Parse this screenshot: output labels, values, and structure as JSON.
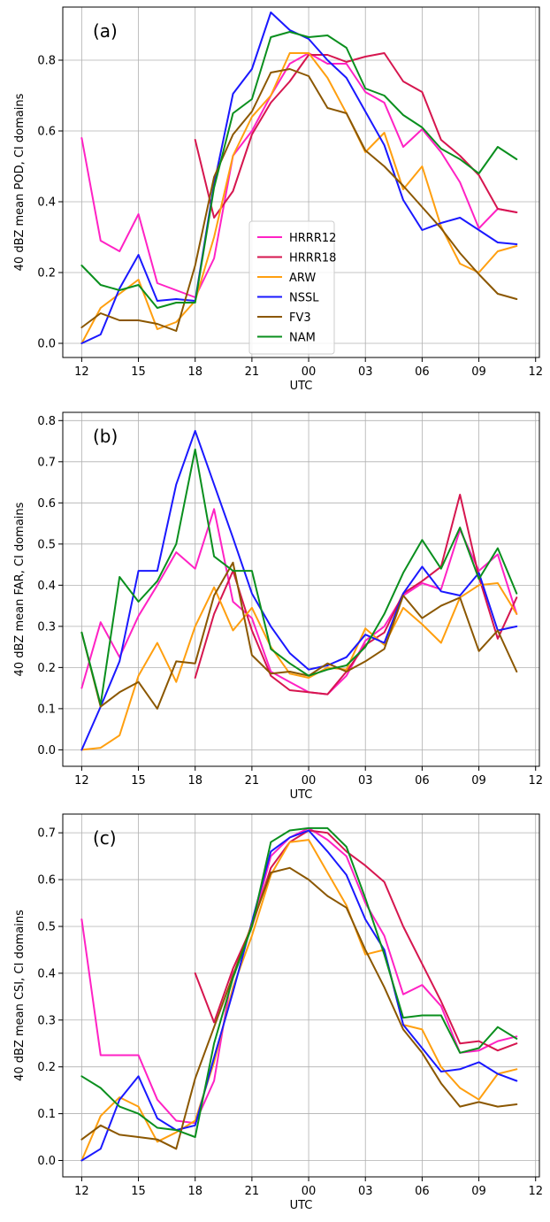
{
  "chart_data": [
    {
      "type": "line",
      "panel_label": "(a)",
      "xlabel": "UTC",
      "ylabel": "40 dBZ mean POD, CI domains",
      "xticks": [
        12,
        15,
        18,
        21,
        24,
        27,
        30,
        33,
        36
      ],
      "xticklabels": [
        "12",
        "15",
        "18",
        "21",
        "00",
        "03",
        "06",
        "09",
        "12"
      ],
      "yticks": [
        0.0,
        0.2,
        0.4,
        0.6,
        0.8
      ],
      "yticklabels": [
        "0.0",
        "0.2",
        "0.4",
        "0.6",
        "0.8"
      ],
      "xlim": [
        11,
        36.2
      ],
      "ylim": [
        -0.04,
        0.95
      ],
      "grid": true,
      "legend": "center, inside plot",
      "series": [
        {
          "name": "HRRR12",
          "color": "#ff22c4",
          "x": [
            12,
            13,
            14,
            15,
            16,
            17,
            18,
            19,
            20,
            21,
            22,
            23,
            24,
            25,
            26,
            27,
            28,
            29,
            30,
            31,
            32,
            33,
            34,
            35
          ],
          "values": [
            0.58,
            0.29,
            0.26,
            0.365,
            0.17,
            0.15,
            0.13,
            0.24,
            0.53,
            0.6,
            0.7,
            0.79,
            0.82,
            0.79,
            0.79,
            0.71,
            0.68,
            0.555,
            0.605,
            0.54,
            0.455,
            0.325,
            0.38,
            0.37
          ]
        },
        {
          "name": "HRRR18",
          "color": "#d6164f",
          "x": [
            18,
            19,
            20,
            21,
            22,
            23,
            24,
            25,
            26,
            27,
            28,
            29,
            30,
            31,
            32,
            33,
            34,
            35
          ],
          "values": [
            0.575,
            0.355,
            0.43,
            0.59,
            0.68,
            0.74,
            0.815,
            0.815,
            0.795,
            0.81,
            0.82,
            0.74,
            0.71,
            0.575,
            0.53,
            0.475,
            0.38,
            0.37
          ]
        },
        {
          "name": "ARW",
          "color": "#ff9f0f",
          "x": [
            12,
            13,
            14,
            15,
            16,
            17,
            18,
            19,
            20,
            21,
            22,
            23,
            24,
            25,
            26,
            27,
            28,
            29,
            30,
            31,
            32,
            33,
            34,
            35
          ],
          "values": [
            0.0,
            0.1,
            0.14,
            0.18,
            0.04,
            0.06,
            0.12,
            0.3,
            0.53,
            0.64,
            0.7,
            0.82,
            0.82,
            0.75,
            0.65,
            0.54,
            0.595,
            0.435,
            0.5,
            0.33,
            0.225,
            0.2,
            0.26,
            0.275
          ]
        },
        {
          "name": "NSSL",
          "color": "#1a18ff",
          "x": [
            12,
            13,
            14,
            15,
            16,
            17,
            18,
            19,
            20,
            21,
            22,
            23,
            24,
            25,
            26,
            27,
            28,
            29,
            30,
            31,
            32,
            33,
            34,
            35
          ],
          "values": [
            0.0,
            0.025,
            0.155,
            0.25,
            0.12,
            0.125,
            0.12,
            0.45,
            0.705,
            0.775,
            0.935,
            0.885,
            0.86,
            0.8,
            0.75,
            0.655,
            0.56,
            0.405,
            0.32,
            0.34,
            0.355,
            0.32,
            0.285,
            0.28
          ]
        },
        {
          "name": "FV3",
          "color": "#8b5700",
          "x": [
            12,
            13,
            14,
            15,
            16,
            17,
            18,
            19,
            20,
            21,
            22,
            23,
            24,
            25,
            26,
            27,
            28,
            29,
            30,
            31,
            32,
            33,
            34,
            35
          ],
          "values": [
            0.045,
            0.085,
            0.065,
            0.065,
            0.055,
            0.035,
            0.22,
            0.47,
            0.59,
            0.655,
            0.765,
            0.775,
            0.755,
            0.665,
            0.65,
            0.545,
            0.5,
            0.445,
            0.385,
            0.325,
            0.255,
            0.195,
            0.14,
            0.125
          ]
        },
        {
          "name": "NAM",
          "color": "#0a8f1e",
          "x": [
            12,
            13,
            14,
            15,
            16,
            17,
            18,
            19,
            20,
            21,
            22,
            23,
            24,
            25,
            26,
            27,
            28,
            29,
            30,
            31,
            32,
            33,
            34,
            35
          ],
          "values": [
            0.22,
            0.165,
            0.15,
            0.165,
            0.1,
            0.115,
            0.115,
            0.44,
            0.65,
            0.69,
            0.865,
            0.88,
            0.865,
            0.87,
            0.835,
            0.72,
            0.7,
            0.645,
            0.61,
            0.55,
            0.52,
            0.48,
            0.555,
            0.52
          ]
        }
      ]
    },
    {
      "type": "line",
      "panel_label": "(b)",
      "xlabel": "UTC",
      "ylabel": "40 dBZ mean FAR, CI domains",
      "xticks": [
        12,
        15,
        18,
        21,
        24,
        27,
        30,
        33,
        36
      ],
      "xticklabels": [
        "12",
        "15",
        "18",
        "21",
        "00",
        "03",
        "06",
        "09",
        "12"
      ],
      "yticks": [
        0.0,
        0.1,
        0.2,
        0.3,
        0.4,
        0.5,
        0.6,
        0.7,
        0.8
      ],
      "yticklabels": [
        "0.0",
        "0.1",
        "0.2",
        "0.3",
        "0.4",
        "0.5",
        "0.6",
        "0.7",
        "0.8"
      ],
      "xlim": [
        11,
        36.2
      ],
      "ylim": [
        -0.04,
        0.82
      ],
      "grid": true,
      "series": [
        {
          "name": "HRRR12",
          "color": "#ff22c4",
          "x": [
            12,
            13,
            14,
            15,
            16,
            17,
            18,
            19,
            20,
            21,
            22,
            23,
            24,
            25,
            26,
            27,
            28,
            29,
            30,
            31,
            32,
            33,
            34,
            35
          ],
          "values": [
            0.15,
            0.31,
            0.225,
            0.325,
            0.4,
            0.48,
            0.44,
            0.585,
            0.36,
            0.32,
            0.19,
            0.165,
            0.14,
            0.135,
            0.18,
            0.265,
            0.3,
            0.375,
            0.405,
            0.39,
            0.535,
            0.435,
            0.475,
            0.33
          ]
        },
        {
          "name": "HRRR18",
          "color": "#d6164f",
          "x": [
            18,
            19,
            20,
            21,
            22,
            23,
            24,
            25,
            26,
            27,
            28,
            29,
            30,
            31,
            32,
            33,
            34,
            35
          ],
          "values": [
            0.175,
            0.33,
            0.435,
            0.29,
            0.18,
            0.145,
            0.14,
            0.135,
            0.19,
            0.255,
            0.285,
            0.38,
            0.41,
            0.445,
            0.62,
            0.42,
            0.27,
            0.37
          ]
        },
        {
          "name": "ARW",
          "color": "#ff9f0f",
          "x": [
            12,
            13,
            14,
            15,
            16,
            17,
            18,
            19,
            20,
            21,
            22,
            23,
            24,
            25,
            26,
            27,
            28,
            29,
            30,
            31,
            32,
            33,
            34,
            35
          ],
          "values": [
            0.0,
            0.005,
            0.035,
            0.18,
            0.26,
            0.165,
            0.3,
            0.395,
            0.29,
            0.345,
            0.25,
            0.185,
            0.175,
            0.2,
            0.195,
            0.295,
            0.255,
            0.345,
            0.305,
            0.26,
            0.37,
            0.4,
            0.405,
            0.33
          ]
        },
        {
          "name": "NSSL",
          "color": "#1a18ff",
          "x": [
            12,
            13,
            14,
            15,
            16,
            17,
            18,
            19,
            20,
            21,
            22,
            23,
            24,
            25,
            26,
            27,
            28,
            29,
            30,
            31,
            32,
            33,
            34,
            35
          ],
          "values": [
            0.0,
            0.105,
            0.215,
            0.435,
            0.435,
            0.645,
            0.775,
            0.645,
            0.515,
            0.38,
            0.3,
            0.235,
            0.195,
            0.205,
            0.225,
            0.28,
            0.26,
            0.38,
            0.445,
            0.385,
            0.375,
            0.43,
            0.29,
            0.3
          ]
        },
        {
          "name": "FV3",
          "color": "#8b5700",
          "x": [
            12,
            13,
            14,
            15,
            16,
            17,
            18,
            19,
            20,
            21,
            22,
            23,
            24,
            25,
            26,
            27,
            28,
            29,
            30,
            31,
            32,
            33,
            34,
            35
          ],
          "values": [
            0.285,
            0.105,
            0.14,
            0.165,
            0.1,
            0.215,
            0.21,
            0.375,
            0.455,
            0.23,
            0.185,
            0.19,
            0.18,
            0.21,
            0.19,
            0.215,
            0.245,
            0.375,
            0.32,
            0.35,
            0.37,
            0.24,
            0.29,
            0.19
          ]
        },
        {
          "name": "NAM",
          "color": "#0a8f1e",
          "x": [
            12,
            13,
            14,
            15,
            16,
            17,
            18,
            19,
            20,
            21,
            22,
            23,
            24,
            25,
            26,
            27,
            28,
            29,
            30,
            31,
            32,
            33,
            34,
            35
          ],
          "values": [
            0.285,
            0.11,
            0.42,
            0.36,
            0.41,
            0.5,
            0.73,
            0.47,
            0.435,
            0.435,
            0.245,
            0.21,
            0.18,
            0.195,
            0.205,
            0.25,
            0.33,
            0.43,
            0.51,
            0.44,
            0.54,
            0.415,
            0.49,
            0.38
          ]
        }
      ]
    },
    {
      "type": "line",
      "panel_label": "(c)",
      "xlabel": "UTC",
      "ylabel": "40 dBZ mean CSI, CI domains",
      "xticks": [
        12,
        15,
        18,
        21,
        24,
        27,
        30,
        33,
        36
      ],
      "xticklabels": [
        "12",
        "15",
        "18",
        "21",
        "00",
        "03",
        "06",
        "09",
        "12"
      ],
      "yticks": [
        0.0,
        0.1,
        0.2,
        0.3,
        0.4,
        0.5,
        0.6,
        0.7
      ],
      "yticklabels": [
        "0.0",
        "0.1",
        "0.2",
        "0.3",
        "0.4",
        "0.5",
        "0.6",
        "0.7"
      ],
      "xlim": [
        11,
        36.2
      ],
      "ylim": [
        -0.035,
        0.74
      ],
      "grid": true,
      "series": [
        {
          "name": "HRRR12",
          "color": "#ff22c4",
          "x": [
            12,
            13,
            14,
            15,
            16,
            17,
            18,
            19,
            20,
            21,
            22,
            23,
            24,
            25,
            26,
            27,
            28,
            29,
            30,
            31,
            32,
            33,
            34,
            35
          ],
          "values": [
            0.515,
            0.225,
            0.225,
            0.225,
            0.13,
            0.085,
            0.08,
            0.17,
            0.41,
            0.5,
            0.65,
            0.69,
            0.71,
            0.685,
            0.65,
            0.55,
            0.48,
            0.355,
            0.375,
            0.33,
            0.23,
            0.235,
            0.255,
            0.265
          ]
        },
        {
          "name": "HRRR18",
          "color": "#d6164f",
          "x": [
            18,
            19,
            20,
            21,
            22,
            23,
            24,
            25,
            26,
            27,
            28,
            29,
            30,
            31,
            32,
            33,
            34,
            35
          ],
          "values": [
            0.4,
            0.295,
            0.41,
            0.5,
            0.625,
            0.68,
            0.705,
            0.7,
            0.66,
            0.63,
            0.595,
            0.5,
            0.42,
            0.34,
            0.25,
            0.255,
            0.235,
            0.25
          ]
        },
        {
          "name": "ARW",
          "color": "#ff9f0f",
          "x": [
            12,
            13,
            14,
            15,
            16,
            17,
            18,
            19,
            20,
            21,
            22,
            23,
            24,
            25,
            26,
            27,
            28,
            29,
            30,
            31,
            32,
            33,
            34,
            35
          ],
          "values": [
            0.0,
            0.095,
            0.135,
            0.115,
            0.04,
            0.06,
            0.085,
            0.21,
            0.37,
            0.48,
            0.61,
            0.68,
            0.685,
            0.615,
            0.545,
            0.44,
            0.45,
            0.29,
            0.28,
            0.2,
            0.155,
            0.13,
            0.185,
            0.195
          ]
        },
        {
          "name": "NSSL",
          "color": "#1a18ff",
          "x": [
            12,
            13,
            14,
            15,
            16,
            17,
            18,
            19,
            20,
            21,
            22,
            23,
            24,
            25,
            26,
            27,
            28,
            29,
            30,
            31,
            32,
            33,
            34,
            35
          ],
          "values": [
            0.0,
            0.025,
            0.13,
            0.18,
            0.09,
            0.065,
            0.075,
            0.22,
            0.36,
            0.51,
            0.66,
            0.69,
            0.705,
            0.66,
            0.61,
            0.515,
            0.45,
            0.29,
            0.24,
            0.19,
            0.195,
            0.21,
            0.185,
            0.17
          ]
        },
        {
          "name": "FV3",
          "color": "#8b5700",
          "x": [
            12,
            13,
            14,
            15,
            16,
            17,
            18,
            19,
            20,
            21,
            22,
            23,
            24,
            25,
            26,
            27,
            28,
            29,
            30,
            31,
            32,
            33,
            34,
            35
          ],
          "values": [
            0.045,
            0.075,
            0.055,
            0.05,
            0.045,
            0.025,
            0.175,
            0.285,
            0.395,
            0.505,
            0.615,
            0.625,
            0.6,
            0.565,
            0.54,
            0.45,
            0.37,
            0.28,
            0.23,
            0.165,
            0.115,
            0.125,
            0.115,
            0.12
          ]
        },
        {
          "name": "NAM",
          "color": "#0a8f1e",
          "x": [
            12,
            13,
            14,
            15,
            16,
            17,
            18,
            19,
            20,
            21,
            22,
            23,
            24,
            25,
            26,
            27,
            28,
            29,
            30,
            31,
            32,
            33,
            34,
            35
          ],
          "values": [
            0.18,
            0.155,
            0.115,
            0.1,
            0.07,
            0.065,
            0.05,
            0.25,
            0.39,
            0.5,
            0.68,
            0.705,
            0.71,
            0.71,
            0.67,
            0.56,
            0.44,
            0.305,
            0.31,
            0.31,
            0.23,
            0.24,
            0.285,
            0.26
          ]
        }
      ]
    }
  ]
}
